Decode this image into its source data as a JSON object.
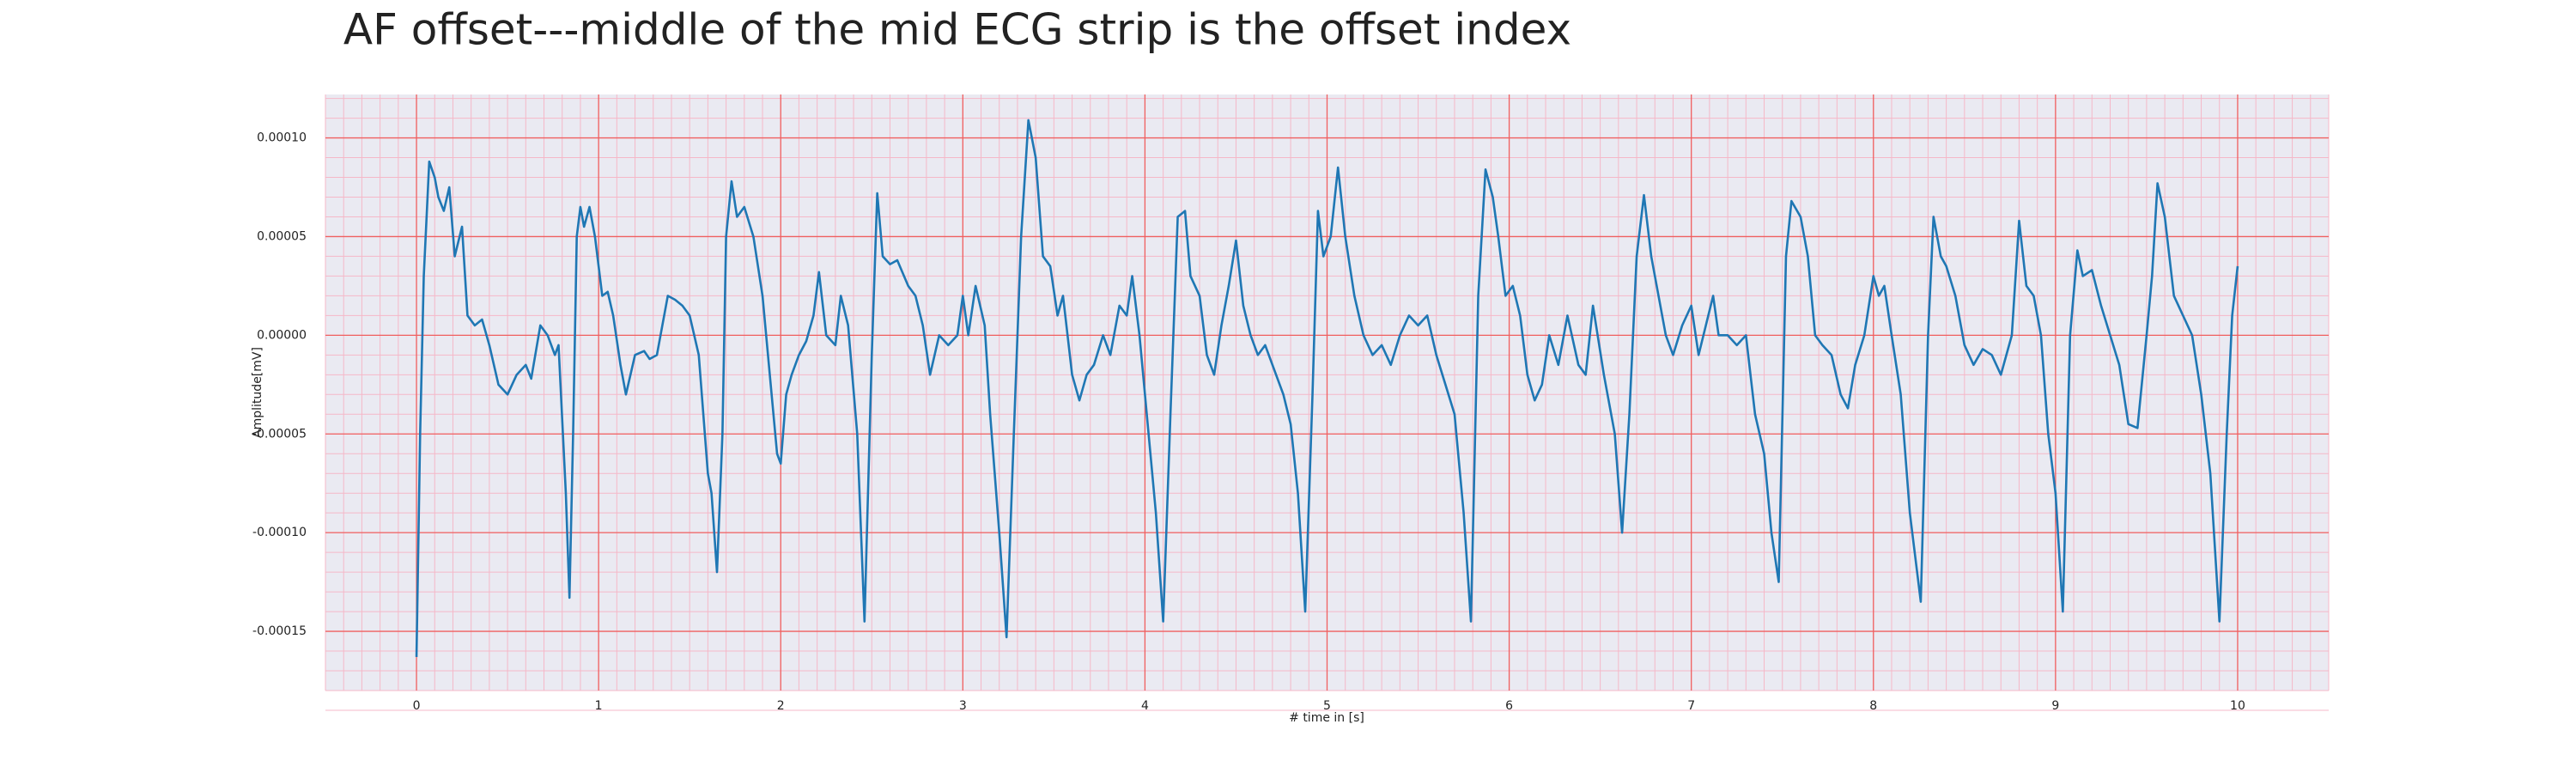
{
  "chart_data": {
    "type": "line",
    "title": "AF offset---middle of the mid ECG strip is the offset index",
    "x_label": "# time in [s]",
    "y_label": "Amplitude[mV]",
    "xlim": [
      -0.5,
      10.5
    ],
    "ylim": [
      -0.00018,
      0.000122
    ],
    "xticks": [
      0,
      1,
      2,
      3,
      4,
      5,
      6,
      7,
      8,
      9,
      10
    ],
    "yticks": [
      {
        "value": -0.00015,
        "label": "-0.00015"
      },
      {
        "value": -0.0001,
        "label": "-0.00010"
      },
      {
        "value": -5e-05,
        "label": "-0.00005"
      },
      {
        "value": 0,
        "label": "0.00000"
      },
      {
        "value": 5e-05,
        "label": "0.00005"
      },
      {
        "value": 0.0001,
        "label": "0.00010"
      }
    ],
    "grid": true,
    "minor_grid": true,
    "grid_color": "#f06060",
    "minor_grid_color": "#f5b8c8",
    "background": "#eaeaf2",
    "x": [
      0.0,
      0.02,
      0.04,
      0.07,
      0.1,
      0.12,
      0.15,
      0.18,
      0.21,
      0.25,
      0.28,
      0.32,
      0.36,
      0.4,
      0.45,
      0.5,
      0.55,
      0.6,
      0.63,
      0.68,
      0.72,
      0.76,
      0.78,
      0.82,
      0.84,
      0.86,
      0.88,
      0.9,
      0.92,
      0.95,
      0.98,
      1.02,
      1.05,
      1.08,
      1.12,
      1.15,
      1.2,
      1.25,
      1.28,
      1.32,
      1.38,
      1.42,
      1.46,
      1.5,
      1.55,
      1.6,
      1.62,
      1.65,
      1.68,
      1.7,
      1.73,
      1.76,
      1.8,
      1.85,
      1.9,
      1.95,
      1.98,
      2.0,
      2.03,
      2.06,
      2.1,
      2.14,
      2.18,
      2.21,
      2.25,
      2.3,
      2.33,
      2.37,
      2.42,
      2.46,
      2.5,
      2.53,
      2.56,
      2.6,
      2.64,
      2.7,
      2.74,
      2.78,
      2.82,
      2.87,
      2.92,
      2.97,
      3.0,
      3.03,
      3.07,
      3.12,
      3.15,
      3.2,
      3.24,
      3.28,
      3.32,
      3.36,
      3.4,
      3.44,
      3.48,
      3.52,
      3.55,
      3.6,
      3.64,
      3.68,
      3.72,
      3.77,
      3.81,
      3.86,
      3.9,
      3.93,
      3.97,
      4.02,
      4.06,
      4.1,
      4.14,
      4.18,
      4.22,
      4.25,
      4.3,
      4.34,
      4.38,
      4.42,
      4.46,
      4.5,
      4.54,
      4.58,
      4.62,
      4.66,
      4.72,
      4.76,
      4.8,
      4.84,
      4.88,
      4.92,
      4.95,
      4.98,
      5.02,
      5.06,
      5.1,
      5.15,
      5.2,
      5.25,
      5.3,
      5.35,
      5.4,
      5.45,
      5.5,
      5.55,
      5.6,
      5.65,
      5.7,
      5.75,
      5.79,
      5.83,
      5.87,
      5.91,
      5.94,
      5.98,
      6.02,
      6.06,
      6.1,
      6.14,
      6.18,
      6.22,
      6.27,
      6.32,
      6.38,
      6.42,
      6.46,
      6.52,
      6.58,
      6.62,
      6.66,
      6.7,
      6.74,
      6.78,
      6.82,
      6.86,
      6.9,
      6.95,
      7.0,
      7.04,
      7.08,
      7.12,
      7.15,
      7.2,
      7.25,
      7.3,
      7.35,
      7.4,
      7.44,
      7.48,
      7.52,
      7.55,
      7.6,
      7.64,
      7.68,
      7.72,
      7.77,
      7.82,
      7.86,
      7.9,
      7.95,
      8.0,
      8.03,
      8.06,
      8.1,
      8.15,
      8.2,
      8.26,
      8.3,
      8.33,
      8.37,
      8.4,
      8.45,
      8.5,
      8.55,
      8.6,
      8.65,
      8.7,
      8.76,
      8.8,
      8.84,
      8.88,
      8.92,
      8.96,
      9.0,
      9.04,
      9.08,
      9.12,
      9.15,
      9.2,
      9.25,
      9.3,
      9.35,
      9.4,
      9.45,
      9.5,
      9.53,
      9.56,
      9.6,
      9.65,
      9.7,
      9.75,
      9.8,
      9.85,
      9.9,
      9.94,
      9.97,
      10.0
    ],
    "series": [
      {
        "color": "#1f77b4",
        "values": [
          -0.000163,
          -5e-05,
          3e-05,
          8.8e-05,
          8e-05,
          7e-05,
          6.3e-05,
          7.5e-05,
          4e-05,
          5.5e-05,
          1e-05,
          5e-06,
          8e-06,
          -5e-06,
          -2.5e-05,
          -3e-05,
          -2e-05,
          -1.5e-05,
          -2.2e-05,
          5e-06,
          0,
          -1e-05,
          -5e-06,
          -8e-05,
          -0.000133,
          -5e-05,
          5e-05,
          6.5e-05,
          5.5e-05,
          6.5e-05,
          5e-05,
          2e-05,
          2.2e-05,
          1e-05,
          -1.5e-05,
          -3e-05,
          -1e-05,
          -8e-06,
          -1.2e-05,
          -1e-05,
          2e-05,
          1.8e-05,
          1.5e-05,
          1e-05,
          -1e-05,
          -7e-05,
          -8e-05,
          -0.00012,
          -5e-05,
          5e-05,
          7.8e-05,
          6e-05,
          6.5e-05,
          5e-05,
          2e-05,
          -3e-05,
          -6e-05,
          -6.5e-05,
          -3e-05,
          -2e-05,
          -1e-05,
          -3e-06,
          1e-05,
          3.2e-05,
          0,
          -5e-06,
          2e-05,
          5e-06,
          -5e-05,
          -0.000145,
          -1e-05,
          7.2e-05,
          4e-05,
          3.6e-05,
          3.8e-05,
          2.5e-05,
          2e-05,
          5e-06,
          -2e-05,
          0,
          -5e-06,
          0,
          2e-05,
          0,
          2.5e-05,
          5e-06,
          -4e-05,
          -0.0001,
          -0.000153,
          -5e-05,
          5e-05,
          0.000109,
          9e-05,
          4e-05,
          3.5e-05,
          1e-05,
          2e-05,
          -2e-05,
          -3.3e-05,
          -2e-05,
          -1.5e-05,
          0,
          -1e-05,
          1.5e-05,
          1e-05,
          3e-05,
          0,
          -5e-05,
          -9e-05,
          -0.000145,
          -4e-05,
          6e-05,
          6.3e-05,
          3e-05,
          2e-05,
          -1e-05,
          -2e-05,
          5e-06,
          2.5e-05,
          4.8e-05,
          1.5e-05,
          0,
          -1e-05,
          -5e-06,
          -2e-05,
          -3e-05,
          -4.5e-05,
          -8e-05,
          -0.00014,
          -3e-05,
          6.3e-05,
          4e-05,
          5e-05,
          8.5e-05,
          5e-05,
          2e-05,
          0,
          -1e-05,
          -5e-06,
          -1.5e-05,
          0,
          1e-05,
          5e-06,
          1e-05,
          -1e-05,
          -2.5e-05,
          -4e-05,
          -9e-05,
          -0.000145,
          2e-05,
          8.4e-05,
          7e-05,
          5e-05,
          2e-05,
          2.5e-05,
          1e-05,
          -2e-05,
          -3.3e-05,
          -2.5e-05,
          0,
          -1.5e-05,
          1e-05,
          -1.5e-05,
          -2e-05,
          1.5e-05,
          -2e-05,
          -5e-05,
          -0.0001,
          -4e-05,
          4e-05,
          7.1e-05,
          4e-05,
          2e-05,
          0,
          -1e-05,
          5e-06,
          1.5e-05,
          -1e-05,
          5e-06,
          2e-05,
          0,
          0,
          -5e-06,
          0,
          -4e-05,
          -6e-05,
          -0.0001,
          -0.000125,
          4e-05,
          6.8e-05,
          6e-05,
          4e-05,
          0,
          -5e-06,
          -1e-05,
          -3e-05,
          -3.7e-05,
          -1.5e-05,
          0,
          3e-05,
          2e-05,
          2.5e-05,
          0,
          -3e-05,
          -9e-05,
          -0.000135,
          0,
          6e-05,
          4e-05,
          3.5e-05,
          2e-05,
          -5e-06,
          -1.5e-05,
          -7e-06,
          -1e-05,
          -2e-05,
          0,
          5.8e-05,
          2.5e-05,
          2e-05,
          0,
          -5e-05,
          -8e-05,
          -0.00014,
          0,
          4.3e-05,
          3e-05,
          3.3e-05,
          1.5e-05,
          0,
          -1.5e-05,
          -4.5e-05,
          -4.7e-05,
          0,
          3e-05,
          7.7e-05,
          6e-05,
          2e-05,
          1e-05,
          0,
          -3e-05,
          -7e-05,
          -0.000145,
          -5e-05,
          1e-05,
          3.5e-05
        ]
      }
    ]
  }
}
